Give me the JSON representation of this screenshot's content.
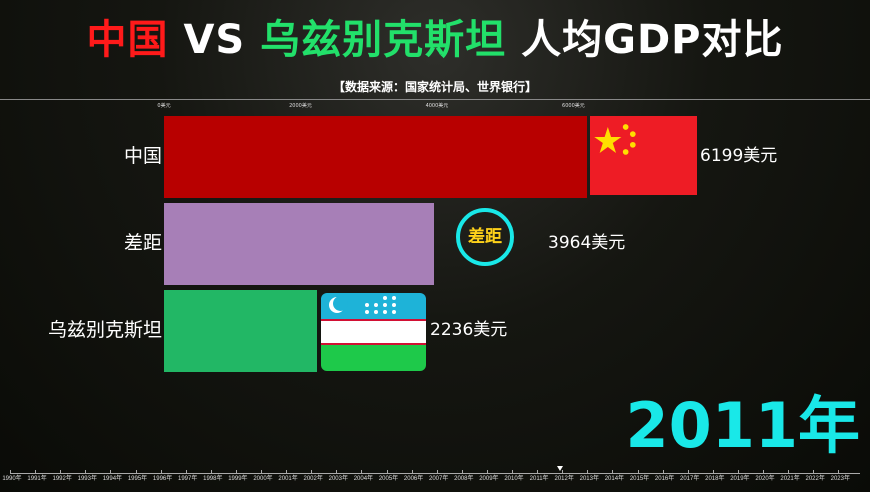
{
  "title": {
    "a": "中国",
    "vs": "VS",
    "b": "乌兹别克斯坦",
    "rest": "人均GDP对比",
    "color_a": "#ff1a1a",
    "color_b": "#22e06a"
  },
  "source": "【数据来源：国家统计局、世界银行】",
  "chart_data": {
    "type": "bar",
    "orientation": "horizontal",
    "categories": [
      "中国",
      "差距",
      "乌兹别克斯坦"
    ],
    "values": [
      6199,
      3964,
      2236
    ],
    "value_labels": [
      "6199美元",
      "3964美元",
      "2236美元"
    ],
    "colors": [
      "#b80000",
      "#a77fb7",
      "#22b765"
    ],
    "x_ticks": [
      "0美元",
      "2000美元",
      "4000美元",
      "6000美元"
    ],
    "x_tick_values": [
      0,
      2000,
      4000,
      6000
    ],
    "badge": "差距",
    "year": "2011年",
    "timeline": [
      "1990年",
      "1991年",
      "1992年",
      "1993年",
      "1994年",
      "1995年",
      "1996年",
      "1997年",
      "1998年",
      "1999年",
      "2000年",
      "2001年",
      "2002年",
      "2003年",
      "2004年",
      "2005年",
      "2006年",
      "2007年",
      "2008年",
      "2009年",
      "2010年",
      "2011年",
      "2012年",
      "2013年",
      "2014年",
      "2015年",
      "2016年",
      "2017年",
      "2018年",
      "2019年",
      "2020年",
      "2021年",
      "2022年",
      "2023年"
    ],
    "timeline_position": 2011.9
  }
}
